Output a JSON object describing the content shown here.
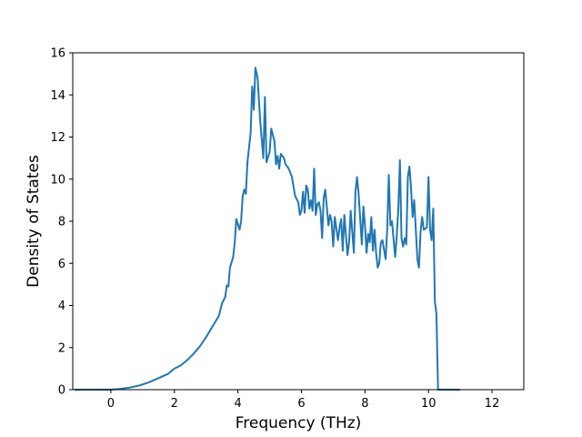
{
  "chart_data": {
    "type": "line",
    "title": "",
    "xlabel": "Frequency (THz)",
    "ylabel": "Density of States",
    "xlim": [
      -1.2,
      13.0
    ],
    "ylim": [
      0,
      16
    ],
    "xticks": [
      0,
      2,
      4,
      6,
      8,
      10,
      12
    ],
    "yticks": [
      0,
      2,
      4,
      6,
      8,
      10,
      12,
      14,
      16
    ],
    "xtick_labels": [
      "0",
      "2",
      "4",
      "6",
      "8",
      "10",
      "12"
    ],
    "ytick_labels": [
      "0",
      "2",
      "4",
      "6",
      "8",
      "10",
      "12",
      "14",
      "16"
    ],
    "grid": false,
    "legend": "none",
    "series": [
      {
        "color": "#1f77b4",
        "points": [
          [
            -1.15,
            0.0
          ],
          [
            -0.5,
            0.0
          ],
          [
            0.0,
            0.0
          ],
          [
            0.3,
            0.04
          ],
          [
            0.6,
            0.1
          ],
          [
            0.9,
            0.2
          ],
          [
            1.2,
            0.35
          ],
          [
            1.5,
            0.55
          ],
          [
            1.8,
            0.75
          ],
          [
            2.0,
            1.0
          ],
          [
            2.2,
            1.15
          ],
          [
            2.4,
            1.4
          ],
          [
            2.6,
            1.7
          ],
          [
            2.8,
            2.05
          ],
          [
            3.0,
            2.5
          ],
          [
            3.2,
            3.0
          ],
          [
            3.4,
            3.5
          ],
          [
            3.5,
            4.1
          ],
          [
            3.6,
            4.4
          ],
          [
            3.65,
            4.95
          ],
          [
            3.7,
            4.9
          ],
          [
            3.75,
            5.8
          ],
          [
            3.85,
            6.3
          ],
          [
            3.9,
            7.0
          ],
          [
            3.95,
            8.1
          ],
          [
            4.05,
            7.6
          ],
          [
            4.1,
            8.0
          ],
          [
            4.15,
            9.2
          ],
          [
            4.2,
            9.5
          ],
          [
            4.25,
            9.3
          ],
          [
            4.3,
            10.8
          ],
          [
            4.4,
            12.2
          ],
          [
            4.45,
            14.4
          ],
          [
            4.5,
            13.3
          ],
          [
            4.55,
            15.3
          ],
          [
            4.62,
            14.8
          ],
          [
            4.7,
            12.8
          ],
          [
            4.8,
            11.0
          ],
          [
            4.85,
            13.9
          ],
          [
            4.9,
            10.8
          ],
          [
            5.0,
            11.3
          ],
          [
            5.05,
            12.4
          ],
          [
            5.15,
            11.8
          ],
          [
            5.2,
            10.7
          ],
          [
            5.25,
            11.1
          ],
          [
            5.3,
            10.5
          ],
          [
            5.35,
            11.2
          ],
          [
            5.45,
            11.0
          ],
          [
            5.5,
            10.7
          ],
          [
            5.6,
            10.5
          ],
          [
            5.7,
            10.1
          ],
          [
            5.8,
            9.2
          ],
          [
            5.9,
            8.9
          ],
          [
            5.95,
            8.3
          ],
          [
            6.0,
            8.5
          ],
          [
            6.05,
            9.4
          ],
          [
            6.1,
            8.4
          ],
          [
            6.15,
            9.7
          ],
          [
            6.2,
            9.5
          ],
          [
            6.25,
            8.6
          ],
          [
            6.3,
            9.0
          ],
          [
            6.35,
            8.5
          ],
          [
            6.4,
            10.5
          ],
          [
            6.45,
            8.3
          ],
          [
            6.5,
            8.8
          ],
          [
            6.55,
            8.9
          ],
          [
            6.6,
            8.5
          ],
          [
            6.65,
            7.2
          ],
          [
            6.7,
            9.1
          ],
          [
            6.75,
            9.5
          ],
          [
            6.85,
            7.8
          ],
          [
            6.9,
            8.3
          ],
          [
            6.95,
            8.0
          ],
          [
            7.0,
            6.8
          ],
          [
            7.05,
            8.2
          ],
          [
            7.15,
            7.1
          ],
          [
            7.2,
            7.7
          ],
          [
            7.25,
            8.1
          ],
          [
            7.3,
            6.6
          ],
          [
            7.35,
            8.3
          ],
          [
            7.45,
            6.4
          ],
          [
            7.5,
            7.0
          ],
          [
            7.55,
            8.5
          ],
          [
            7.6,
            7.5
          ],
          [
            7.65,
            6.5
          ],
          [
            7.7,
            9.4
          ],
          [
            7.75,
            10.1
          ],
          [
            7.8,
            9.3
          ],
          [
            7.9,
            6.9
          ],
          [
            7.95,
            8.7
          ],
          [
            8.0,
            7.8
          ],
          [
            8.05,
            6.5
          ],
          [
            8.1,
            7.4
          ],
          [
            8.15,
            7.0
          ],
          [
            8.2,
            8.2
          ],
          [
            8.25,
            6.6
          ],
          [
            8.3,
            7.6
          ],
          [
            8.35,
            6.5
          ],
          [
            8.4,
            5.8
          ],
          [
            8.45,
            6.0
          ],
          [
            8.5,
            7.0
          ],
          [
            8.55,
            7.1
          ],
          [
            8.65,
            6.2
          ],
          [
            8.7,
            7.6
          ],
          [
            8.75,
            10.2
          ],
          [
            8.8,
            7.8
          ],
          [
            8.85,
            8.0
          ],
          [
            8.95,
            6.3
          ],
          [
            9.0,
            7.3
          ],
          [
            9.05,
            8.6
          ],
          [
            9.1,
            10.9
          ],
          [
            9.15,
            7.2
          ],
          [
            9.2,
            6.8
          ],
          [
            9.25,
            7.2
          ],
          [
            9.3,
            6.9
          ],
          [
            9.35,
            10.1
          ],
          [
            9.4,
            10.6
          ],
          [
            9.45,
            9.6
          ],
          [
            9.5,
            8.2
          ],
          [
            9.55,
            9.0
          ],
          [
            9.6,
            7.6
          ],
          [
            9.65,
            6.2
          ],
          [
            9.7,
            5.8
          ],
          [
            9.75,
            7.5
          ],
          [
            9.8,
            8.2
          ],
          [
            9.85,
            7.6
          ],
          [
            9.95,
            7.7
          ],
          [
            10.0,
            10.1
          ],
          [
            10.05,
            7.6
          ],
          [
            10.1,
            7.1
          ],
          [
            10.15,
            8.6
          ],
          [
            10.2,
            4.2
          ],
          [
            10.25,
            3.6
          ],
          [
            10.3,
            0.0
          ],
          [
            10.8,
            0.0
          ],
          [
            11.0,
            0.0
          ]
        ]
      }
    ]
  }
}
